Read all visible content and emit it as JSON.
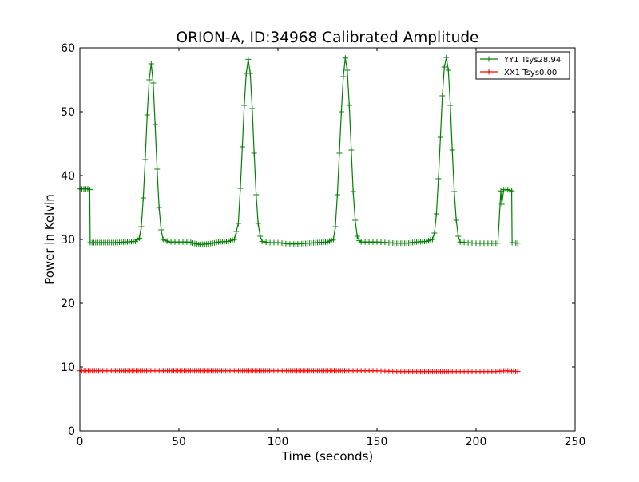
{
  "chart_data": {
    "type": "line",
    "title": "ORION-A, ID:34968 Calibrated Amplitude",
    "xlabel": "Time (seconds)",
    "ylabel": "Power in Kelvin",
    "xlim": [
      0,
      250
    ],
    "ylim": [
      0,
      60
    ],
    "xticks": [
      0,
      50,
      100,
      150,
      200,
      250
    ],
    "yticks": [
      0,
      10,
      20,
      30,
      40,
      50,
      60
    ],
    "grid": false,
    "legend_position": "top-right",
    "series": [
      {
        "name": "YY1 Tsys28.94",
        "color": "#008000",
        "marker": "+",
        "x": [
          0,
          4,
          5,
          5.2,
          8,
          13,
          18,
          23,
          28,
          30,
          31,
          32,
          33,
          34,
          35,
          36,
          37,
          38,
          39,
          40,
          41,
          42,
          45,
          50,
          55,
          60,
          65,
          70,
          75,
          78,
          80,
          81,
          82,
          83,
          84,
          85,
          86,
          87,
          88,
          89,
          90,
          91,
          92,
          95,
          100,
          105,
          110,
          115,
          120,
          125,
          128,
          129,
          130,
          131,
          132,
          133,
          134,
          135,
          136,
          137,
          138,
          139,
          140,
          141,
          142,
          145,
          150,
          155,
          160,
          165,
          170,
          175,
          178,
          179,
          180,
          181,
          182,
          183,
          184,
          185,
          186,
          187,
          188,
          189,
          190,
          191,
          192,
          195,
          200,
          205,
          211,
          212.5,
          213,
          214,
          215,
          216,
          217,
          218,
          218.2,
          221
        ],
        "y": [
          37.9,
          37.9,
          37.8,
          29.5,
          29.5,
          29.5,
          29.5,
          29.6,
          29.7,
          30.2,
          32.0,
          36.5,
          42.5,
          49.5,
          55.0,
          57.5,
          54.5,
          48.0,
          41.0,
          35.0,
          31.5,
          30.0,
          29.6,
          29.6,
          29.6,
          29.2,
          29.3,
          29.6,
          29.7,
          30.0,
          32.5,
          38.0,
          44.5,
          51.0,
          56.0,
          58.2,
          56.0,
          50.5,
          43.5,
          37.0,
          32.5,
          30.5,
          29.7,
          29.5,
          29.5,
          29.3,
          29.3,
          29.4,
          29.5,
          29.6,
          30.0,
          32.0,
          37.0,
          43.5,
          50.0,
          55.5,
          58.4,
          56.5,
          51.0,
          44.0,
          37.5,
          33.0,
          30.5,
          29.8,
          29.6,
          29.6,
          29.6,
          29.5,
          29.4,
          29.4,
          29.6,
          29.7,
          30.0,
          31.0,
          34.0,
          39.5,
          46.0,
          52.5,
          57.0,
          58.5,
          56.5,
          51.0,
          44.0,
          37.5,
          33.0,
          30.5,
          29.6,
          29.5,
          29.4,
          29.4,
          29.4,
          37.6,
          35.5,
          37.8,
          37.8,
          37.8,
          37.7,
          37.6,
          29.5,
          29.4
        ]
      },
      {
        "name": "XX1 Tsys0.00",
        "color": "#ff0000",
        "marker": "+",
        "x": [
          0,
          20,
          40,
          60,
          80,
          100,
          120,
          140,
          150,
          160,
          170,
          180,
          190,
          200,
          210,
          215,
          221
        ],
        "y": [
          9.4,
          9.4,
          9.4,
          9.4,
          9.4,
          9.4,
          9.4,
          9.4,
          9.4,
          9.3,
          9.3,
          9.3,
          9.3,
          9.3,
          9.3,
          9.4,
          9.3
        ]
      }
    ]
  }
}
